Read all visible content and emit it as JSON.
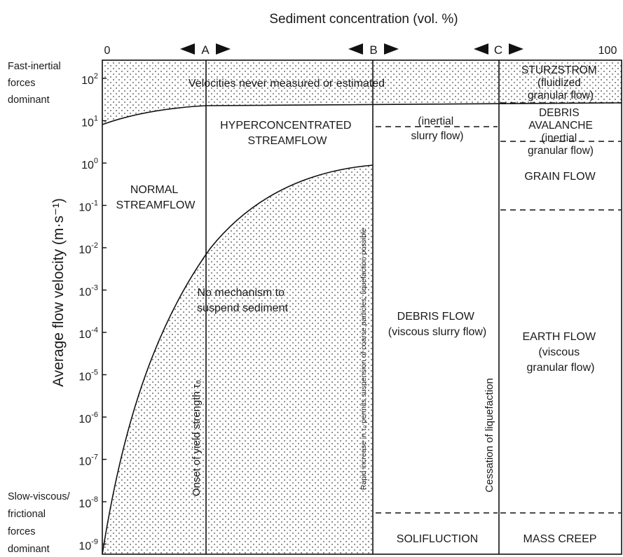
{
  "top_axis": {
    "title": "Sediment concentration (vol. %)",
    "min_label": "0",
    "max_label": "100",
    "markers": [
      {
        "letter": "A"
      },
      {
        "letter": "B"
      },
      {
        "letter": "C"
      }
    ]
  },
  "left_axis": {
    "title": "Average flow velocity (m·s⁻¹)",
    "tick_labels": [
      {
        "base": "10",
        "exp": "2"
      },
      {
        "base": "10",
        "exp": "1"
      },
      {
        "base": "10",
        "exp": "0"
      },
      {
        "base": "10",
        "exp": "-1"
      },
      {
        "base": "10",
        "exp": "-2"
      },
      {
        "base": "10",
        "exp": "-3"
      },
      {
        "base": "10",
        "exp": "-4"
      },
      {
        "base": "10",
        "exp": "-5"
      },
      {
        "base": "10",
        "exp": "-6"
      },
      {
        "base": "10",
        "exp": "-7"
      },
      {
        "base": "10",
        "exp": "-8"
      },
      {
        "base": "10",
        "exp": "-9"
      }
    ],
    "top_note": [
      "Fast-inertial",
      "forces",
      "dominant"
    ],
    "bottom_note": [
      "Slow-viscous/",
      "frictional",
      "forces",
      "dominant"
    ]
  },
  "regions": {
    "never_measured": "Velocities never measured or estimated",
    "hyperconcentrated": [
      "HYPERCONCENTRATED",
      "STREAMFLOW"
    ],
    "normal": [
      "NORMAL",
      "STREAMFLOW"
    ],
    "no_mechanism": [
      "No mechanism to",
      "suspend sediment"
    ],
    "inertial_slurry": [
      "(inertial",
      "slurry flow)"
    ],
    "debris_flow": [
      "DEBRIS FLOW",
      "(viscous slurry flow)"
    ],
    "solifluction": "SOLIFLUCTION",
    "sturzstrom": [
      "STURZSTROM",
      "(fluidized",
      "granular flow)"
    ],
    "debris_avalanche": [
      "DEBRIS",
      "AVALANCHE"
    ],
    "inertial_granular": [
      "(inertial",
      "granular flow)"
    ],
    "grain_flow": "GRAIN FLOW",
    "earth_flow": [
      "EARTH FLOW",
      "(viscous",
      "granular flow)"
    ],
    "mass_creep": "MASS CREEP"
  },
  "boundary_labels": {
    "onset": "Onset of yield strength τ₀",
    "rapid_increase": "Rapid increase in τ₀ permits suspension of coarse particles; liquefaction possible",
    "cessation": "Cessation of liquefaction"
  }
}
